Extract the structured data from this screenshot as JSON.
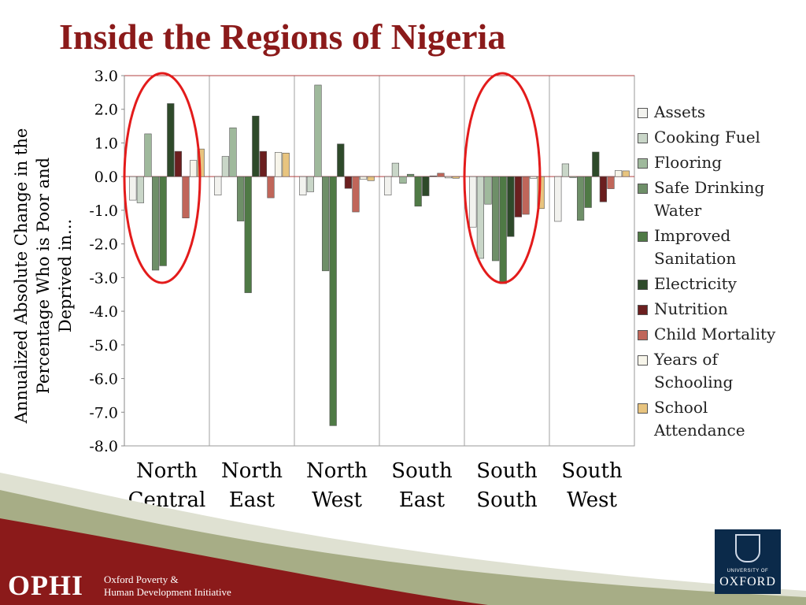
{
  "slide": {
    "title": "Inside the Regions of Nigeria"
  },
  "chart_data": {
    "type": "bar",
    "title": "",
    "ylabel_lines": [
      "Annualized Absolute Change in the",
      "Percentage Who is Poor and",
      "Deprived in..."
    ],
    "xlabel": "",
    "ylim": [
      -8.0,
      3.0
    ],
    "yticks": [
      "3.0",
      "2.0",
      "1.0",
      "0.0",
      "-1.0",
      "-2.0",
      "-3.0",
      "-4.0",
      "-5.0",
      "-6.0",
      "-7.0",
      "-8.0"
    ],
    "categories": [
      [
        "North",
        "Central"
      ],
      [
        "North",
        "East"
      ],
      [
        "North",
        "West"
      ],
      [
        "South",
        "East"
      ],
      [
        "South",
        "South"
      ],
      [
        "South",
        "West"
      ]
    ],
    "legend_position": "right",
    "grid": false,
    "series": [
      {
        "name": "Assets",
        "legend_lines": [
          "Assets"
        ],
        "color": "#f2f2ee",
        "values": [
          -0.7,
          -0.55,
          -0.55,
          -0.55,
          -1.5,
          -1.33
        ]
      },
      {
        "name": "Cooking Fuel",
        "legend_lines": [
          "Cooking Fuel"
        ],
        "color": "#c9d6c8",
        "values": [
          -0.78,
          0.6,
          -0.45,
          0.4,
          -2.43,
          0.38
        ]
      },
      {
        "name": "Flooring",
        "legend_lines": [
          "Flooring"
        ],
        "color": "#9fb99c",
        "values": [
          1.27,
          1.45,
          2.72,
          -0.2,
          -0.82,
          -0.03
        ]
      },
      {
        "name": "Safe Drinking Water",
        "legend_lines": [
          "Safe Drinking",
          "Water"
        ],
        "color": "#6e8f68",
        "values": [
          -2.78,
          -1.32,
          -2.8,
          0.07,
          -2.5,
          -1.3
        ]
      },
      {
        "name": "Improved Sanitation",
        "legend_lines": [
          "Improved",
          "Sanitation"
        ],
        "color": "#4f7a45",
        "values": [
          -2.65,
          -3.45,
          -7.4,
          -0.88,
          -3.18,
          -0.92
        ]
      },
      {
        "name": "Electricity",
        "legend_lines": [
          "Electricity"
        ],
        "color": "#2e4a2a",
        "values": [
          2.17,
          1.8,
          0.97,
          -0.57,
          -1.78,
          0.73
        ]
      },
      {
        "name": "Nutrition",
        "legend_lines": [
          "Nutrition"
        ],
        "color": "#6b1f1f",
        "values": [
          0.75,
          0.75,
          -0.35,
          0.02,
          -1.2,
          -0.75
        ]
      },
      {
        "name": "Child Mortality",
        "legend_lines": [
          "Child Mortality"
        ],
        "color": "#c0665a",
        "values": [
          -1.23,
          -0.63,
          -1.05,
          0.1,
          -1.12,
          -0.36
        ]
      },
      {
        "name": "Years of Schooling",
        "legend_lines": [
          "Years of",
          "Schooling"
        ],
        "color": "#f7f5ea",
        "values": [
          0.48,
          0.72,
          -0.08,
          -0.04,
          -0.05,
          0.18
        ]
      },
      {
        "name": "School Attendance",
        "legend_lines": [
          "School",
          "Attendance"
        ],
        "color": "#e8c47f",
        "values": [
          0.82,
          0.7,
          -0.12,
          -0.05,
          -0.95,
          0.17
        ]
      }
    ],
    "highlights": [
      {
        "category": "North Central",
        "shape": "ellipse",
        "color": "#e31b1b"
      },
      {
        "category": "South South",
        "shape": "ellipse",
        "color": "#e31b1b"
      }
    ]
  },
  "footer": {
    "org_short": "OPHI",
    "org_long_line1": "Oxford Poverty &",
    "org_long_line2": "Human Development Initiative",
    "university_small": "UNIVERSITY OF",
    "university_big": "OXFORD"
  },
  "colors": {
    "title": "#8b1a1a",
    "footer_band": "#8b1a1a",
    "footer_accent": "#9aa07a",
    "axis": "#b04040"
  }
}
